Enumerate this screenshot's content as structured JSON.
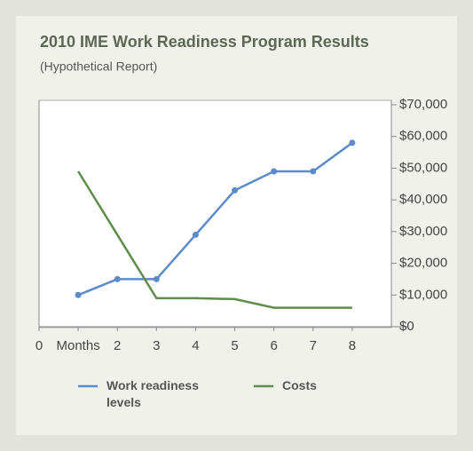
{
  "chart_data": {
    "type": "line",
    "title": "2010 IME Work Readiness Program Results",
    "subtitle": "(Hypothetical Report)",
    "xlim": [
      0,
      9
    ],
    "xticks": [
      0,
      {
        "value": 1,
        "label": "Months"
      },
      2,
      3,
      4,
      5,
      6,
      7,
      8
    ],
    "ylim": [
      0,
      70
    ],
    "y2lim": [
      0,
      70000
    ],
    "y2ticks": [
      {
        "value": 0,
        "label": "$0"
      },
      {
        "value": 10000,
        "label": "$10,000"
      },
      {
        "value": 20000,
        "label": "$20,000"
      },
      {
        "value": 30000,
        "label": "$30,000"
      },
      {
        "value": 40000,
        "label": "$40,000"
      },
      {
        "value": 50000,
        "label": "$50,000"
      },
      {
        "value": 60000,
        "label": "$60,000"
      },
      {
        "value": 70000,
        "label": "$70,000"
      }
    ],
    "series": [
      {
        "name": "Work readiness levels",
        "color": "#5b8bc9",
        "axis": "y",
        "x": [
          1,
          2,
          3,
          4,
          5,
          6,
          7,
          8
        ],
        "values": [
          10,
          15,
          15,
          29,
          43,
          49,
          49,
          58
        ],
        "markers": true
      },
      {
        "name": "Costs",
        "color": "#5e8d4a",
        "axis": "y2",
        "x": [
          1,
          3,
          4,
          5,
          6,
          7,
          8
        ],
        "values": [
          49000,
          9000,
          9000,
          8700,
          6000,
          6000,
          6000
        ],
        "markers": false
      }
    ],
    "legend": "bottom"
  }
}
